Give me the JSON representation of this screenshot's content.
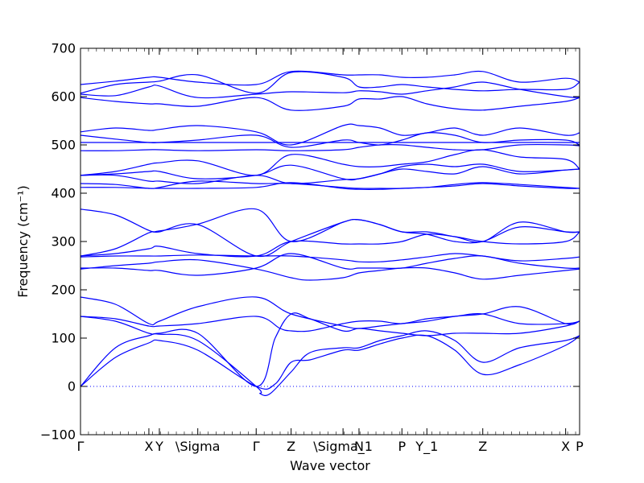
{
  "chart_data": {
    "type": "line",
    "xlabel": "Wave vector",
    "ylabel": "Frequency (cm⁻¹)",
    "ylim": [
      -100,
      700
    ],
    "yticks": [
      -100,
      0,
      100,
      200,
      300,
      400,
      500,
      600,
      700
    ],
    "x_tick_labels": [
      "Γ",
      "X",
      "Y",
      "\\Sigma",
      "Γ",
      "Z",
      "\\Sigma_1",
      "N",
      "P",
      "Y_1",
      "Z",
      "X",
      "P"
    ],
    "x_tick_positions": [
      0.0,
      1.37,
      1.58,
      2.35,
      3.52,
      4.22,
      5.26,
      5.58,
      6.44,
      6.94,
      8.06,
      9.72,
      10.0
    ],
    "xlim": [
      0.0,
      10.0
    ],
    "grid": false,
    "line_color": "#0000ff",
    "zero_line": {
      "y": 0,
      "style": "dotted",
      "color": "#0000ff"
    },
    "series": [
      {
        "x": [
          0,
          0.7,
          1.37,
          1.58,
          2.35,
          3.52,
          3.9,
          4.22,
          4.6,
          5.26,
          5.58,
          6.0,
          6.44,
          6.94,
          7.5,
          8.06,
          8.8,
          9.72,
          10
        ],
        "y": [
          0,
          60,
          90,
          95,
          75,
          0,
          5,
          50,
          55,
          75,
          75,
          88,
          100,
          105,
          75,
          25,
          45,
          85,
          105
        ]
      },
      {
        "x": [
          0,
          0.7,
          1.37,
          1.58,
          2.35,
          3.52,
          3.6,
          3.8,
          4.22,
          4.6,
          5.26,
          5.58,
          6.0,
          6.44,
          6.94,
          7.5,
          8.06,
          8.8,
          9.72,
          10
        ],
        "y": [
          0,
          80,
          105,
          108,
          95,
          0,
          -15,
          -15,
          30,
          70,
          80,
          80,
          95,
          105,
          115,
          95,
          50,
          80,
          95,
          105
        ]
      },
      {
        "x": [
          0,
          0.7,
          1.37,
          1.58,
          2.35,
          3.52,
          3.9,
          4.22,
          4.6,
          5.26,
          5.58,
          6.0,
          6.44,
          6.94,
          7.5,
          8.06,
          8.8,
          9.72,
          10
        ],
        "y": [
          145,
          135,
          110,
          110,
          110,
          0,
          100,
          150,
          140,
          115,
          120,
          115,
          110,
          105,
          110,
          110,
          110,
          125,
          135
        ]
      },
      {
        "x": [
          0,
          0.7,
          1.37,
          1.58,
          2.35,
          3.52,
          4.0,
          4.22,
          4.6,
          5.26,
          5.58,
          6.0,
          6.44,
          6.94,
          7.5,
          8.06,
          8.8,
          9.72,
          10
        ],
        "y": [
          145,
          140,
          125,
          125,
          130,
          145,
          120,
          115,
          115,
          130,
          135,
          135,
          130,
          140,
          145,
          150,
          130,
          130,
          135
        ]
      },
      {
        "x": [
          0,
          0.7,
          1.37,
          1.58,
          2.35,
          3.52,
          4.22,
          5.26,
          5.58,
          6.0,
          6.44,
          6.94,
          7.5,
          8.06,
          8.8,
          9.72,
          10
        ],
        "y": [
          185,
          170,
          130,
          135,
          165,
          185,
          150,
          125,
          120,
          125,
          130,
          135,
          145,
          150,
          165,
          130,
          135
        ]
      },
      {
        "x": [
          0,
          0.7,
          1.37,
          1.58,
          2.35,
          3.52,
          4.22,
          4.6,
          5.26,
          5.58,
          6.0,
          6.44,
          6.94,
          7.5,
          8.06,
          8.8,
          9.72,
          10
        ],
        "y": [
          243,
          250,
          255,
          258,
          262,
          243,
          225,
          220,
          225,
          235,
          240,
          245,
          245,
          235,
          222,
          230,
          240,
          243
        ]
      },
      {
        "x": [
          0,
          0.7,
          1.37,
          1.58,
          2.35,
          3.52,
          4.22,
          5.26,
          5.58,
          6.0,
          6.44,
          6.94,
          7.5,
          8.06,
          8.8,
          9.72,
          10
        ],
        "y": [
          245,
          245,
          240,
          240,
          230,
          245,
          275,
          245,
          245,
          245,
          245,
          255,
          265,
          270,
          255,
          245,
          245
        ]
      },
      {
        "x": [
          0,
          0.7,
          1.37,
          1.58,
          2.35,
          3.52,
          4.22,
          5.26,
          5.58,
          6.0,
          6.44,
          6.94,
          7.5,
          8.06,
          8.8,
          9.72,
          10
        ],
        "y": [
          268,
          270,
          270,
          270,
          272,
          270,
          270,
          262,
          258,
          258,
          262,
          268,
          275,
          270,
          260,
          265,
          268
        ]
      },
      {
        "x": [
          0,
          0.7,
          1.37,
          1.58,
          2.35,
          3.52,
          4.22,
          5.26,
          5.58,
          6.0,
          6.44,
          6.94,
          7.5,
          8.06,
          8.8,
          9.72,
          10
        ],
        "y": [
          270,
          275,
          285,
          290,
          275,
          270,
          300,
          295,
          295,
          295,
          300,
          315,
          310,
          300,
          295,
          300,
          320
        ]
      },
      {
        "x": [
          0,
          0.7,
          1.37,
          1.58,
          2.35,
          3.52,
          4.22,
          5.26,
          5.58,
          6.0,
          6.44,
          6.94,
          7.5,
          8.06,
          8.8,
          9.72,
          10
        ],
        "y": [
          270,
          285,
          318,
          320,
          335,
          270,
          300,
          340,
          345,
          335,
          320,
          315,
          300,
          300,
          330,
          320,
          320
        ]
      },
      {
        "x": [
          0,
          0.7,
          1.37,
          1.58,
          2.35,
          3.52,
          4.22,
          5.26,
          5.58,
          6.0,
          6.44,
          6.94,
          7.5,
          8.06,
          8.8,
          9.72,
          10
        ],
        "y": [
          367,
          355,
          323,
          322,
          336,
          367,
          300,
          340,
          345,
          335,
          320,
          320,
          310,
          300,
          340,
          320,
          320
        ]
      },
      {
        "x": [
          0,
          0.7,
          1.37,
          1.58,
          2.35,
          3.52,
          4.22,
          5.26,
          5.58,
          6.0,
          6.44,
          6.94,
          7.5,
          8.06,
          8.8,
          9.72,
          10
        ],
        "y": [
          412,
          412,
          410,
          410,
          410,
          412,
          422,
          410,
          408,
          408,
          410,
          412,
          415,
          420,
          415,
          410,
          410
        ]
      },
      {
        "x": [
          0,
          0.7,
          1.37,
          1.58,
          2.35,
          3.52,
          4.22,
          5.26,
          5.58,
          6.0,
          6.44,
          6.94,
          7.5,
          8.06,
          8.8,
          9.72,
          10
        ],
        "y": [
          420,
          418,
          410,
          412,
          425,
          420,
          420,
          412,
          410,
          410,
          410,
          412,
          418,
          422,
          418,
          412,
          410
        ]
      },
      {
        "x": [
          0,
          0.7,
          1.37,
          1.58,
          2.35,
          3.52,
          4.22,
          5.26,
          5.58,
          6.0,
          6.44,
          6.94,
          7.5,
          8.06,
          8.8,
          9.72,
          10
        ],
        "y": [
          437,
          437,
          425,
          425,
          420,
          437,
          420,
          428,
          430,
          440,
          450,
          445,
          440,
          455,
          440,
          448,
          450
        ]
      },
      {
        "x": [
          0,
          0.7,
          1.37,
          1.58,
          2.35,
          3.52,
          4.22,
          5.26,
          5.58,
          6.0,
          6.44,
          6.94,
          7.5,
          8.06,
          8.8,
          9.72,
          10
        ],
        "y": [
          437,
          440,
          445,
          445,
          430,
          437,
          458,
          430,
          430,
          440,
          455,
          460,
          455,
          460,
          445,
          448,
          450
        ]
      },
      {
        "x": [
          0,
          0.7,
          1.37,
          1.58,
          2.35,
          3.52,
          4.22,
          5.26,
          5.58,
          6.0,
          6.44,
          6.94,
          7.5,
          8.06,
          8.8,
          9.72,
          10
        ],
        "y": [
          437,
          445,
          460,
          463,
          467,
          437,
          480,
          460,
          455,
          455,
          460,
          465,
          480,
          490,
          475,
          470,
          450
        ]
      },
      {
        "x": [
          0,
          0.7,
          1.37,
          1.58,
          2.35,
          3.52,
          4.22,
          5.26,
          5.58,
          6.0,
          6.44,
          6.94,
          7.5,
          8.06,
          8.8,
          9.72,
          10
        ],
        "y": [
          488,
          488,
          490,
          490,
          488,
          490,
          488,
          490,
          495,
          500,
          500,
          495,
          490,
          490,
          500,
          500,
          498
        ]
      },
      {
        "x": [
          0,
          0.7,
          1.37,
          1.58,
          2.35,
          3.52,
          4.22,
          5.26,
          5.58,
          6.0,
          6.44,
          6.94,
          7.5,
          8.06,
          8.8,
          9.72,
          10
        ],
        "y": [
          505,
          505,
          505,
          505,
          505,
          505,
          505,
          505,
          505,
          505,
          505,
          505,
          505,
          505,
          505,
          505,
          505
        ]
      },
      {
        "x": [
          0,
          0.7,
          1.37,
          1.58,
          2.35,
          3.52,
          4.22,
          5.26,
          5.58,
          6.0,
          6.44,
          6.94,
          7.5,
          8.06,
          8.8,
          9.72,
          10
        ],
        "y": [
          520,
          512,
          505,
          505,
          510,
          520,
          495,
          510,
          505,
          500,
          510,
          525,
          520,
          505,
          510,
          510,
          500
        ]
      },
      {
        "x": [
          0,
          0.7,
          1.37,
          1.58,
          2.35,
          3.52,
          4.22,
          5.26,
          5.58,
          6.0,
          6.44,
          6.94,
          7.5,
          8.06,
          8.8,
          9.72,
          10
        ],
        "y": [
          527,
          535,
          530,
          532,
          540,
          527,
          500,
          540,
          540,
          535,
          520,
          525,
          535,
          520,
          535,
          520,
          525
        ]
      },
      {
        "x": [
          0,
          0.7,
          1.37,
          1.58,
          2.35,
          3.52,
          4.22,
          5.26,
          5.58,
          6.0,
          6.44,
          6.94,
          7.5,
          8.06,
          8.8,
          9.72,
          10
        ],
        "y": [
          598,
          590,
          585,
          585,
          580,
          598,
          572,
          580,
          595,
          595,
          600,
          585,
          575,
          572,
          580,
          590,
          598
        ]
      },
      {
        "x": [
          0,
          0.7,
          1.37,
          1.58,
          2.35,
          3.52,
          4.22,
          5.26,
          5.58,
          6.0,
          6.44,
          6.94,
          7.5,
          8.06,
          8.8,
          9.72,
          10
        ],
        "y": [
          605,
          602,
          620,
          622,
          598,
          605,
          610,
          608,
          612,
          610,
          605,
          612,
          620,
          630,
          615,
          600,
          598
        ]
      },
      {
        "x": [
          0,
          0.7,
          1.37,
          1.58,
          2.35,
          3.52,
          4.22,
          5.26,
          5.58,
          6.0,
          6.44,
          6.94,
          7.5,
          8.06,
          8.8,
          9.72,
          10
        ],
        "y": [
          607,
          625,
          630,
          632,
          645,
          607,
          650,
          640,
          620,
          620,
          625,
          620,
          615,
          612,
          615,
          615,
          630
        ]
      },
      {
        "x": [
          0,
          0.7,
          1.37,
          1.58,
          2.35,
          3.52,
          4.22,
          5.26,
          5.58,
          6.0,
          6.44,
          6.94,
          7.5,
          8.06,
          8.8,
          9.72,
          10
        ],
        "y": [
          625,
          632,
          640,
          640,
          630,
          625,
          652,
          645,
          645,
          645,
          640,
          640,
          645,
          652,
          630,
          638,
          630
        ]
      }
    ]
  }
}
